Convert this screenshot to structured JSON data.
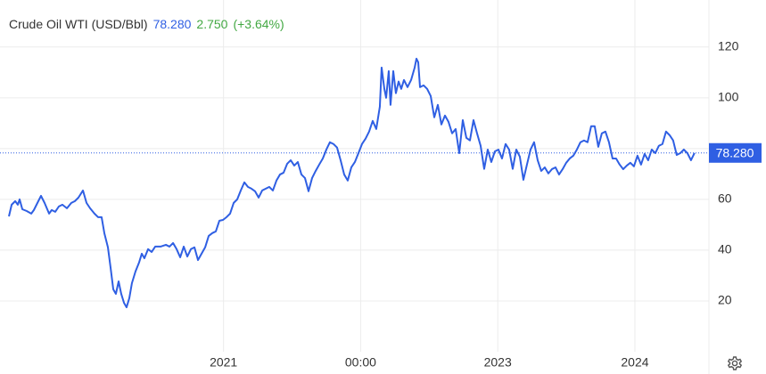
{
  "chart_data": {
    "type": "line",
    "title": "Crude Oil WTI (USD/Bbl)",
    "price": "78.280",
    "change": "2.750",
    "change_pct": "(+3.64%)",
    "current": {
      "value": 78.28,
      "label": "78.280"
    },
    "xlim": [
      2019.37,
      2024.54
    ],
    "xticks": [
      2021,
      {
        "value": 2022,
        "label": "00:00"
      },
      2023,
      2024
    ],
    "ylim": [
      0,
      135
    ],
    "yticks": [
      20,
      40,
      60,
      80,
      100,
      120
    ],
    "grid": true,
    "x": [
      2019.435,
      2019.455,
      2019.481,
      2019.5,
      2019.513,
      2019.533,
      2019.565,
      2019.598,
      2019.617,
      2019.643,
      2019.669,
      2019.695,
      2019.728,
      2019.747,
      2019.773,
      2019.799,
      2019.825,
      2019.858,
      2019.89,
      2019.916,
      2019.942,
      2019.975,
      2020.001,
      2020.027,
      2020.059,
      2020.085,
      2020.111,
      2020.131,
      2020.157,
      2020.176,
      2020.196,
      2020.215,
      2020.235,
      2020.254,
      2020.274,
      2020.293,
      2020.313,
      2020.332,
      2020.358,
      2020.384,
      2020.404,
      2020.423,
      2020.45,
      2020.476,
      2020.502,
      2020.541,
      2020.58,
      2020.606,
      2020.632,
      2020.658,
      2020.684,
      2020.71,
      2020.736,
      2020.762,
      2020.788,
      2020.814,
      2020.84,
      2020.866,
      2020.892,
      2020.918,
      2020.944,
      2020.97,
      2020.996,
      2021.022,
      2021.048,
      2021.074,
      2021.1,
      2021.126,
      2021.152,
      2021.178,
      2021.204,
      2021.23,
      2021.256,
      2021.282,
      2021.308,
      2021.334,
      2021.36,
      2021.386,
      2021.412,
      2021.438,
      2021.464,
      2021.49,
      2021.516,
      2021.542,
      2021.568,
      2021.594,
      2021.62,
      2021.646,
      2021.672,
      2021.698,
      2021.724,
      2021.75,
      2021.776,
      2021.802,
      2021.828,
      2021.854,
      2021.88,
      2021.906,
      2021.932,
      2021.958,
      2021.984,
      2022.01,
      2022.036,
      2022.062,
      2022.088,
      2022.114,
      2022.14,
      2022.153,
      2022.173,
      2022.186,
      2022.205,
      2022.218,
      2022.238,
      2022.257,
      2022.277,
      2022.296,
      2022.316,
      2022.342,
      2022.368,
      2022.394,
      2022.407,
      2022.42,
      2022.433,
      2022.459,
      2022.485,
      2022.511,
      2022.537,
      2022.563,
      2022.589,
      2022.615,
      2022.641,
      2022.667,
      2022.693,
      2022.719,
      2022.745,
      2022.771,
      2022.797,
      2022.823,
      2022.849,
      2022.875,
      2022.901,
      2022.927,
      2022.953,
      2022.979,
      2023.005,
      2023.031,
      2023.057,
      2023.083,
      2023.109,
      2023.135,
      2023.161,
      2023.187,
      2023.213,
      2023.239,
      2023.265,
      2023.291,
      2023.317,
      2023.343,
      2023.369,
      2023.395,
      2023.421,
      2023.447,
      2023.473,
      2023.499,
      2023.525,
      2023.551,
      2023.577,
      2023.603,
      2023.629,
      2023.655,
      2023.681,
      2023.707,
      2023.733,
      2023.759,
      2023.785,
      2023.811,
      2023.837,
      2023.863,
      2023.889,
      2023.915,
      2023.941,
      2023.967,
      2023.993,
      2024.019,
      2024.045,
      2024.071,
      2024.097,
      2024.123,
      2024.149,
      2024.175,
      2024.201,
      2024.227,
      2024.253,
      2024.279,
      2024.305,
      2024.331,
      2024.357,
      2024.383,
      2024.409,
      2024.435
    ],
    "series": [
      {
        "name": "Crude Oil WTI (USD/Bbl)",
        "color": "#2f5fe3",
        "values": [
          53.3,
          57.9,
          59.3,
          57.9,
          60,
          56.1,
          55.4,
          54.4,
          55.8,
          58.6,
          61.4,
          58.6,
          54.4,
          55.8,
          55.1,
          57.2,
          57.9,
          56.5,
          58.6,
          59.3,
          60.7,
          63.5,
          58.6,
          56.5,
          54.4,
          53,
          53,
          46.7,
          41.1,
          33.3,
          24.6,
          22.8,
          27.7,
          22.8,
          19.3,
          17.5,
          21.1,
          27,
          31.6,
          35.1,
          38.6,
          36.8,
          40.4,
          39.3,
          41.4,
          41.4,
          42.1,
          41.4,
          42.8,
          40.4,
          37.2,
          41.4,
          37.5,
          40.4,
          41.1,
          36.1,
          38.6,
          41.1,
          45.6,
          46.7,
          47.4,
          51.6,
          51.9,
          53,
          54.4,
          58.6,
          60,
          63.5,
          66.7,
          64.9,
          64.2,
          63.2,
          60.7,
          63.5,
          64.2,
          64.9,
          63.5,
          67.4,
          69.8,
          70.5,
          74,
          75.4,
          73.3,
          74.7,
          69.8,
          68.4,
          63.2,
          68.4,
          71.2,
          73.7,
          76.1,
          79.6,
          82.5,
          81.8,
          80.4,
          75.4,
          69.8,
          67.4,
          72.6,
          74.7,
          78.2,
          81.8,
          83.9,
          86.7,
          90.9,
          87.7,
          96.5,
          111.9,
          103.5,
          100,
          110.5,
          97.2,
          110.5,
          101.8,
          106.4,
          103.5,
          107,
          104.2,
          107,
          111.9,
          115.4,
          114,
          104.2,
          104.9,
          103.5,
          100.7,
          92.3,
          97.2,
          89.5,
          93,
          90.5,
          86,
          87.7,
          78.2,
          91.2,
          84.2,
          83.2,
          91.2,
          86,
          81.1,
          72,
          79.6,
          74.7,
          78.9,
          79.6,
          76.1,
          81.8,
          79.6,
          72,
          79.6,
          76.8,
          67.7,
          73.7,
          79.6,
          82.5,
          75.4,
          71.2,
          72.6,
          70.2,
          71.9,
          72.6,
          69.8,
          71.9,
          74.4,
          76.1,
          77.2,
          79.6,
          82.5,
          83.2,
          82.5,
          88.8,
          88.8,
          80.7,
          86,
          86.7,
          82.5,
          76.1,
          76.1,
          73.7,
          71.9,
          73.3,
          74.4,
          73,
          77.2,
          73.7,
          77.9,
          75.4,
          79.6,
          78.2,
          81.1,
          81.8,
          86.7,
          85.3,
          83.2,
          77.5,
          78.2,
          79.6,
          78.2,
          75.4,
          78.28
        ]
      }
    ]
  }
}
